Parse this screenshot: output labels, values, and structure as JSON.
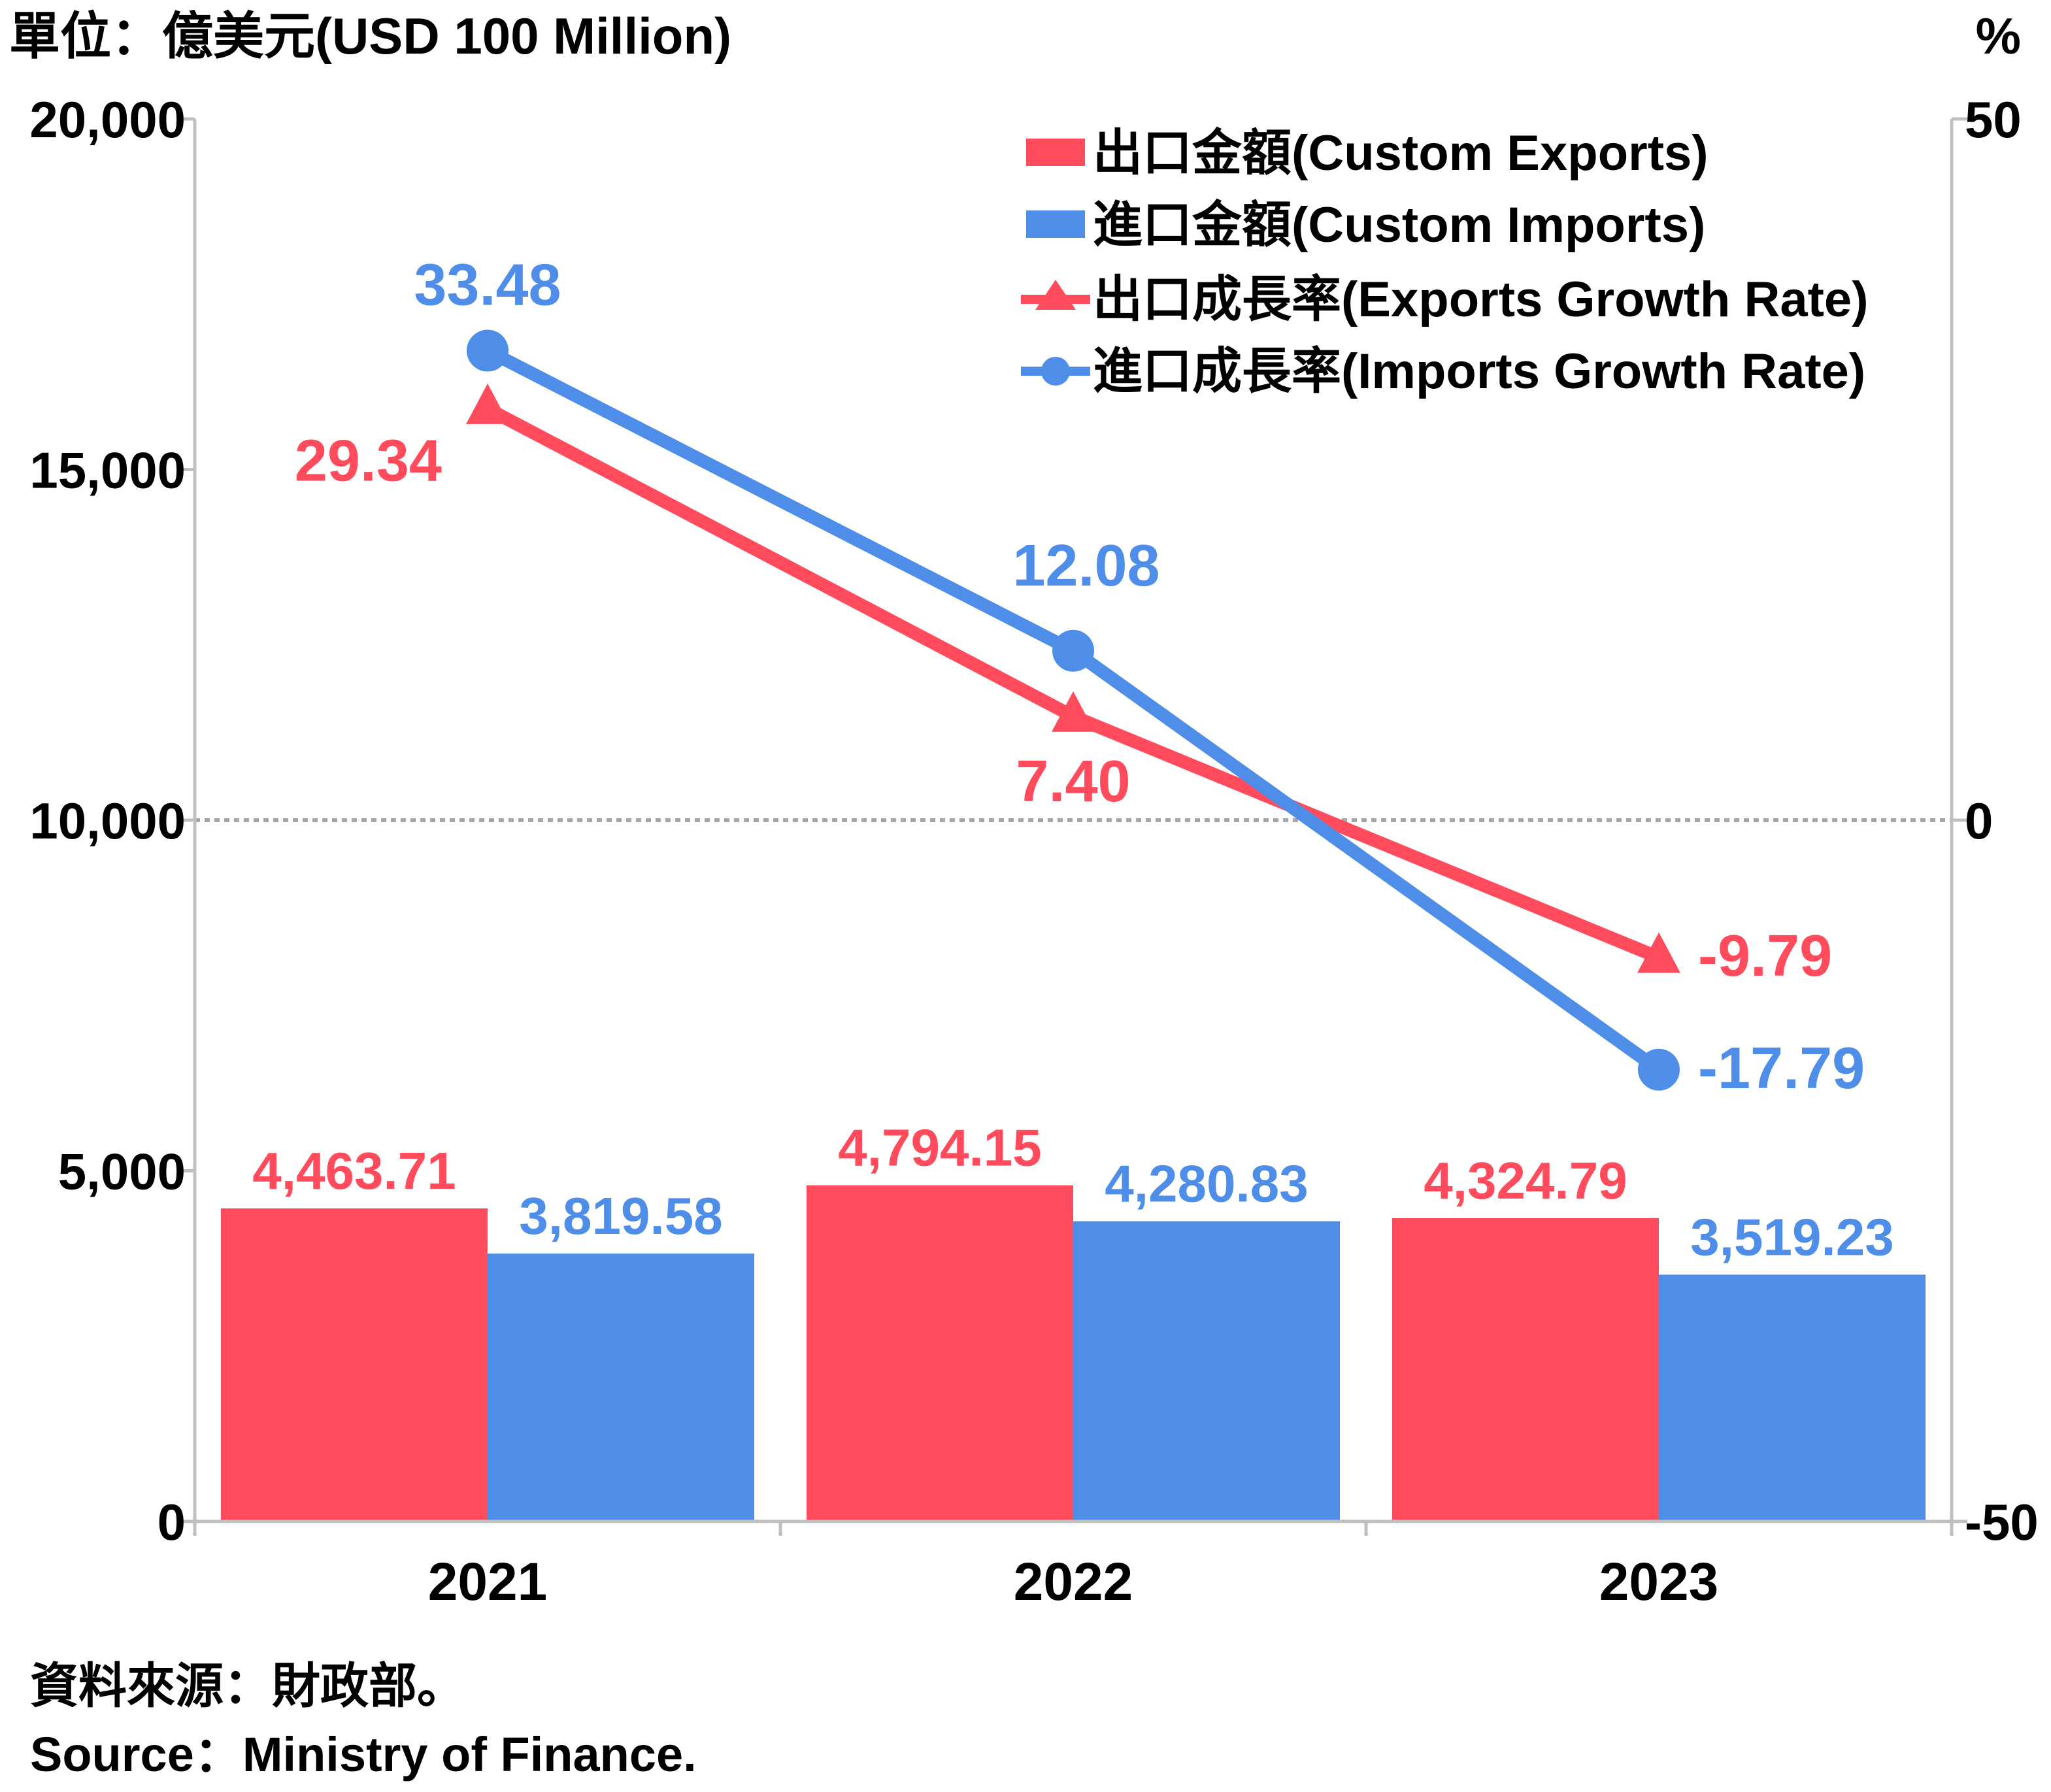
{
  "chart_data": {
    "type": "bar",
    "units_left": "單位：億美元(USD 100 Million)",
    "units_right": "%",
    "categories": [
      "2021",
      "2022",
      "2023"
    ],
    "ylim_left": [
      0,
      20000
    ],
    "yticks_left": [
      0,
      5000,
      10000,
      15000,
      20000
    ],
    "yticks_left_labels": [
      "0",
      "5,000",
      "10,000",
      "15,000",
      "20,000"
    ],
    "ylim_right": [
      -50,
      50
    ],
    "yticks_right": [
      -50,
      0,
      50
    ],
    "yticks_right_labels": [
      "-50",
      "0",
      "50"
    ],
    "zero_reference_line": true,
    "legend_position": "top-right",
    "bar_series": [
      {
        "name": "出口金額(Custom Exports)",
        "color": "#ff4b5c",
        "values": [
          4463.71,
          4794.15,
          4324.79
        ],
        "labels": [
          "4,463.71",
          "4,794.15",
          "4,324.79"
        ]
      },
      {
        "name": "進口金額(Custom Imports)",
        "color": "#4f8ee8",
        "values": [
          3819.58,
          4280.83,
          3519.23
        ],
        "labels": [
          "3,819.58",
          "4,280.83",
          "3,519.23"
        ]
      }
    ],
    "line_series": [
      {
        "name": "出口成長率(Exports Growth Rate)",
        "color": "#ff4b5c",
        "marker": "triangle",
        "axis": "right",
        "values": [
          29.34,
          7.4,
          -9.79
        ],
        "labels": [
          "29.34",
          "7.40",
          "-9.79"
        ]
      },
      {
        "name": "進口成長率(Imports Growth Rate)",
        "color": "#4f8ee8",
        "marker": "circle",
        "axis": "right",
        "values": [
          33.48,
          12.08,
          -17.79
        ],
        "labels": [
          "33.48",
          "12.08",
          "-17.79"
        ]
      }
    ]
  },
  "source": {
    "zh": "資料來源：財政部。",
    "en": "Source：Ministry of Finance."
  },
  "colors": {
    "axis": "#bfbfbf",
    "text": "#000000"
  }
}
